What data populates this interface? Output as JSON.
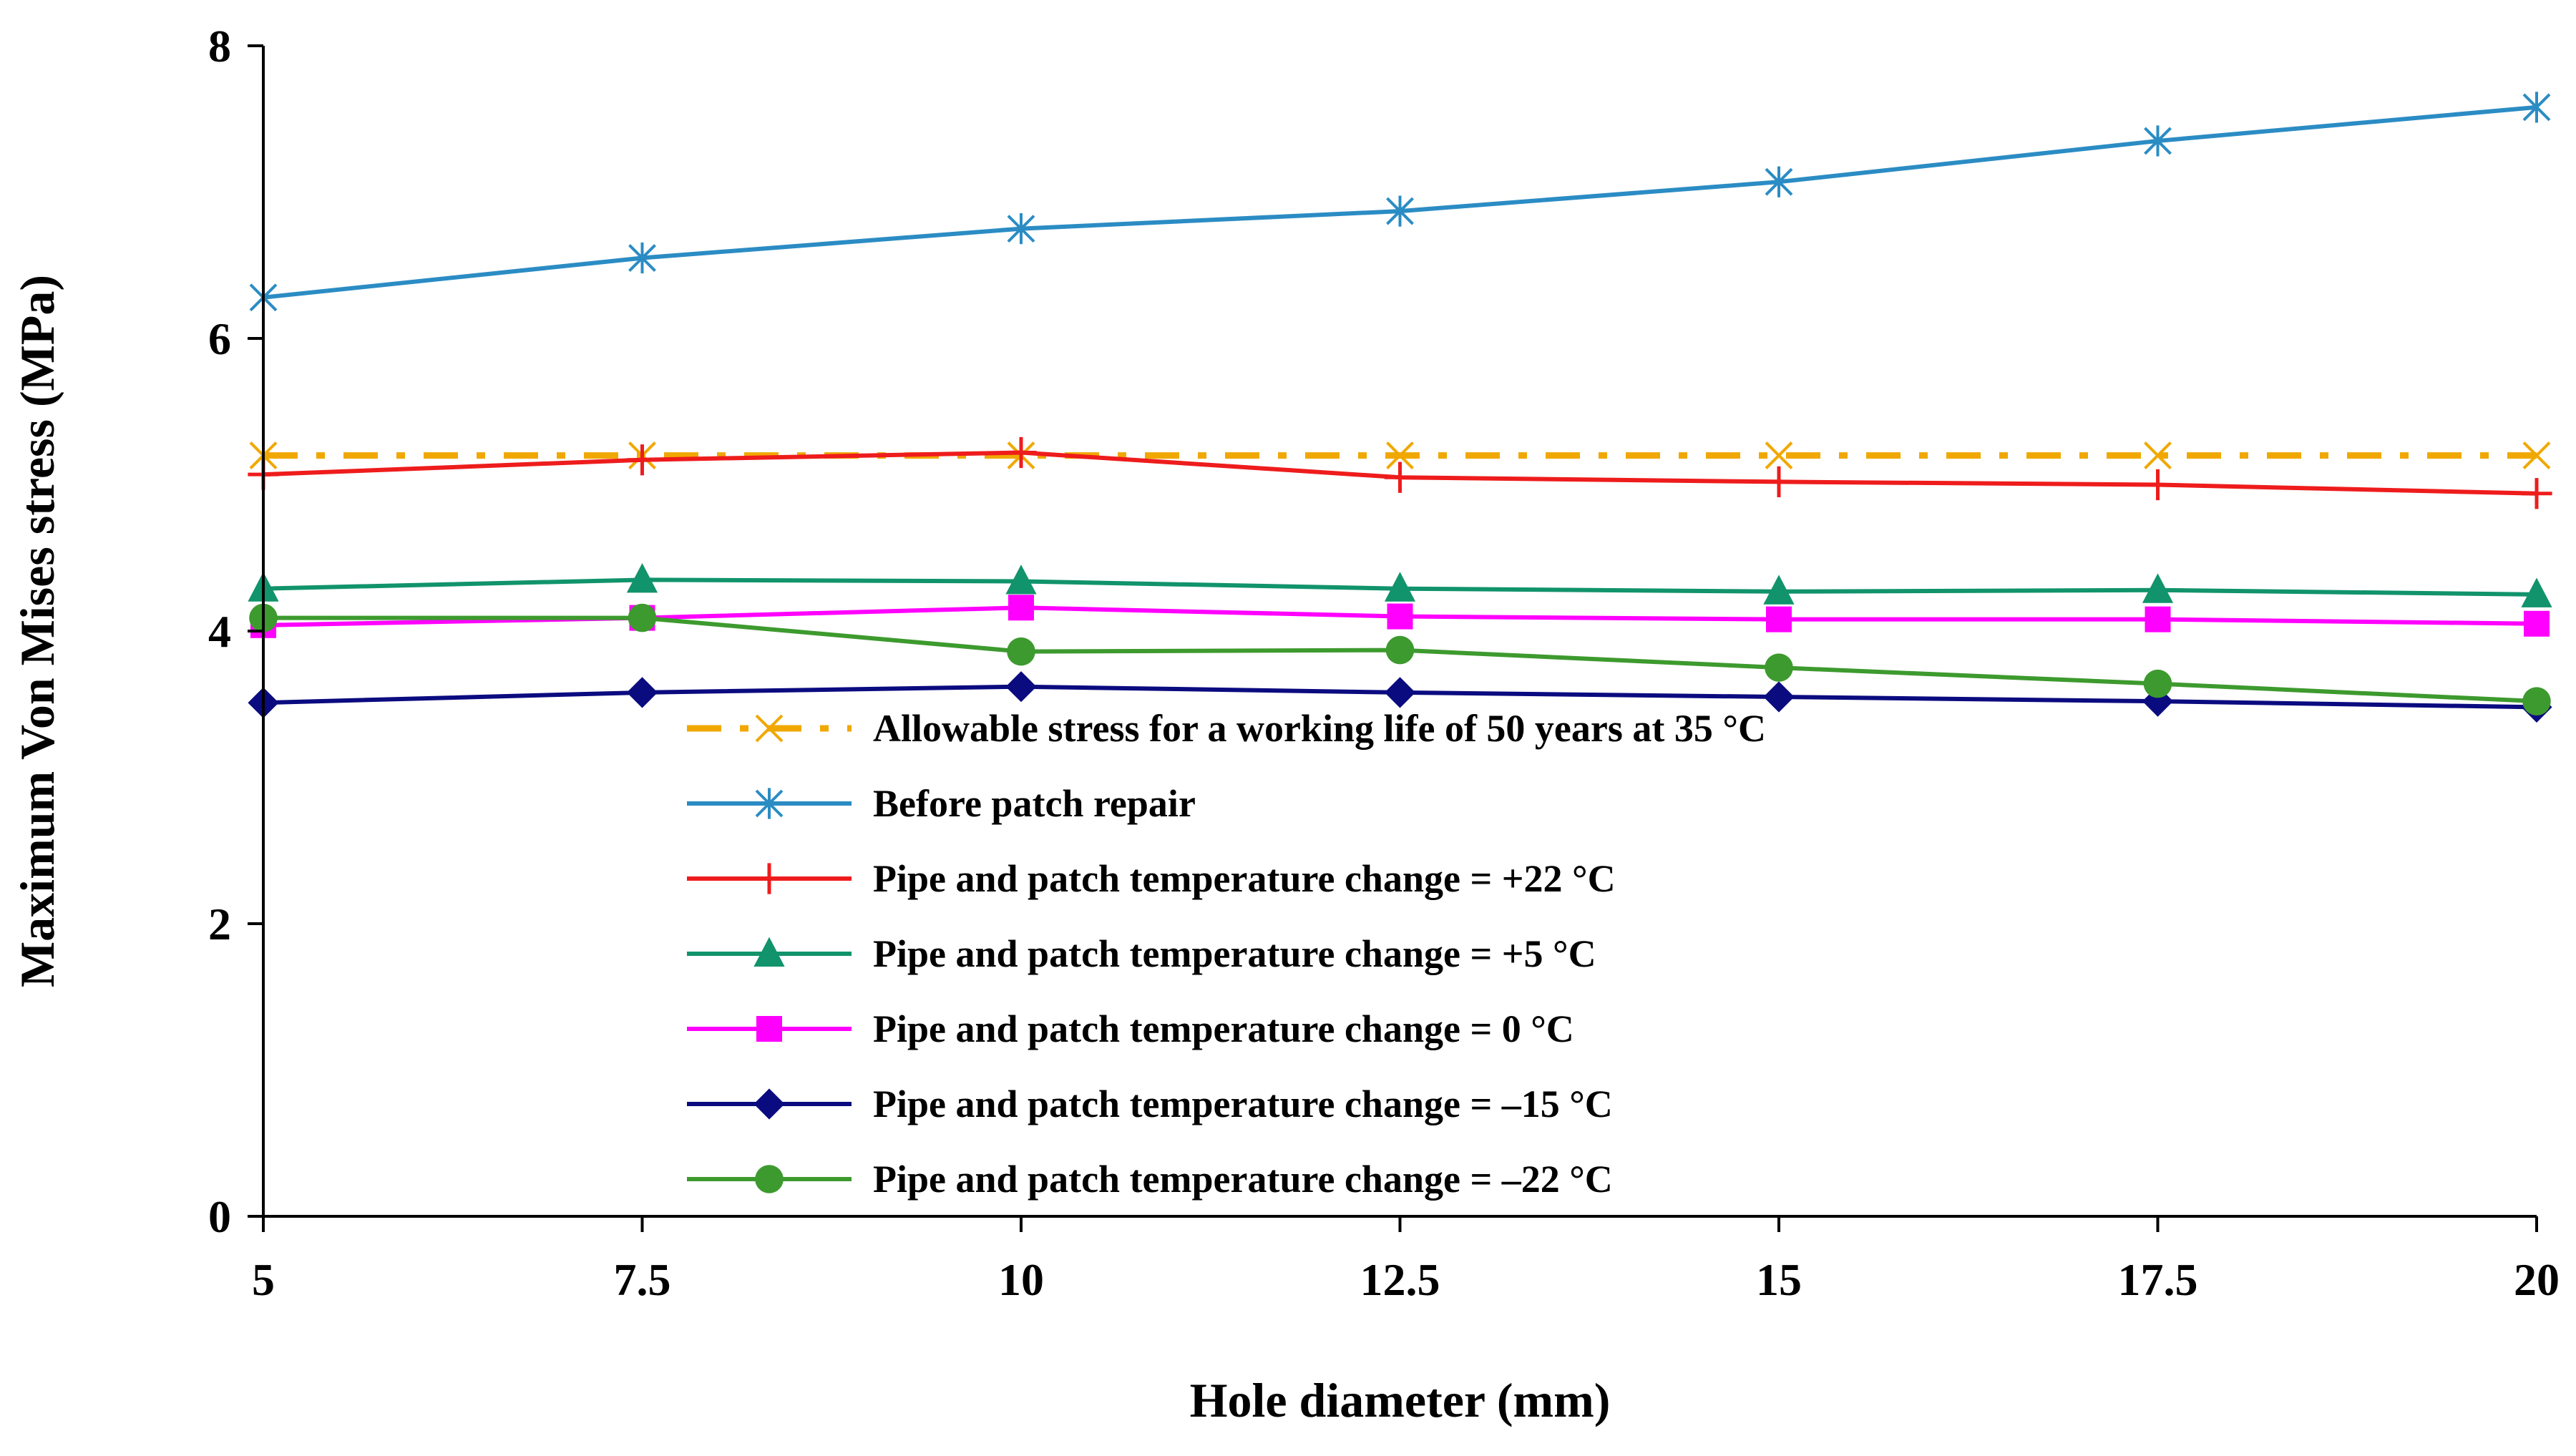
{
  "chart_data": {
    "type": "line",
    "title": "",
    "xlabel": "Hole diameter (mm)",
    "ylabel": "Maximum Von Mises stress (MPa)",
    "x": [
      5,
      7.5,
      10,
      12.5,
      15,
      17.5,
      20
    ],
    "xlim": [
      5,
      20
    ],
    "ylim": [
      0,
      8
    ],
    "xticks": [
      5,
      7.5,
      10,
      12.5,
      15,
      17.5,
      20
    ],
    "yticks": [
      0,
      2,
      4,
      6,
      8
    ],
    "grid": false,
    "legend_position": "lower-center",
    "series": [
      {
        "name": "Allowable stress for a working life of 50 years at 35 °C",
        "color": "#F0A800",
        "marker": "x",
        "dash": "dashdot",
        "values": [
          5.2,
          5.2,
          5.2,
          5.2,
          5.2,
          5.2,
          5.2
        ]
      },
      {
        "name": "Before patch repair",
        "color": "#2B8CC4",
        "marker": "star",
        "dash": "solid",
        "values": [
          6.28,
          6.55,
          6.75,
          6.87,
          7.07,
          7.35,
          7.58
        ]
      },
      {
        "name": "Pipe and patch temperature change = +22 °C",
        "color": "#EE1C1C",
        "marker": "plus",
        "dash": "solid",
        "values": [
          5.07,
          5.17,
          5.22,
          5.05,
          5.02,
          5.0,
          4.94
        ]
      },
      {
        "name": "Pipe and patch temperature change = +5 °C",
        "color": "#11936B",
        "marker": "triangle",
        "dash": "solid",
        "values": [
          4.29,
          4.35,
          4.34,
          4.29,
          4.27,
          4.28,
          4.25
        ]
      },
      {
        "name": "Pipe and patch temperature change = 0 °C",
        "color": "#FF00FF",
        "marker": "square",
        "dash": "solid",
        "values": [
          4.04,
          4.09,
          4.16,
          4.1,
          4.08,
          4.08,
          4.05
        ]
      },
      {
        "name": "Pipe and patch temperature change = –15 °C",
        "color": "#0B0B80",
        "marker": "diamond",
        "dash": "solid",
        "values": [
          3.51,
          3.58,
          3.62,
          3.58,
          3.55,
          3.52,
          3.48
        ]
      },
      {
        "name": "Pipe and patch temperature change = –22 °C",
        "color": "#3D9A2E",
        "marker": "circle",
        "dash": "solid",
        "values": [
          4.09,
          4.09,
          3.86,
          3.87,
          3.75,
          3.64,
          3.52
        ]
      }
    ]
  }
}
